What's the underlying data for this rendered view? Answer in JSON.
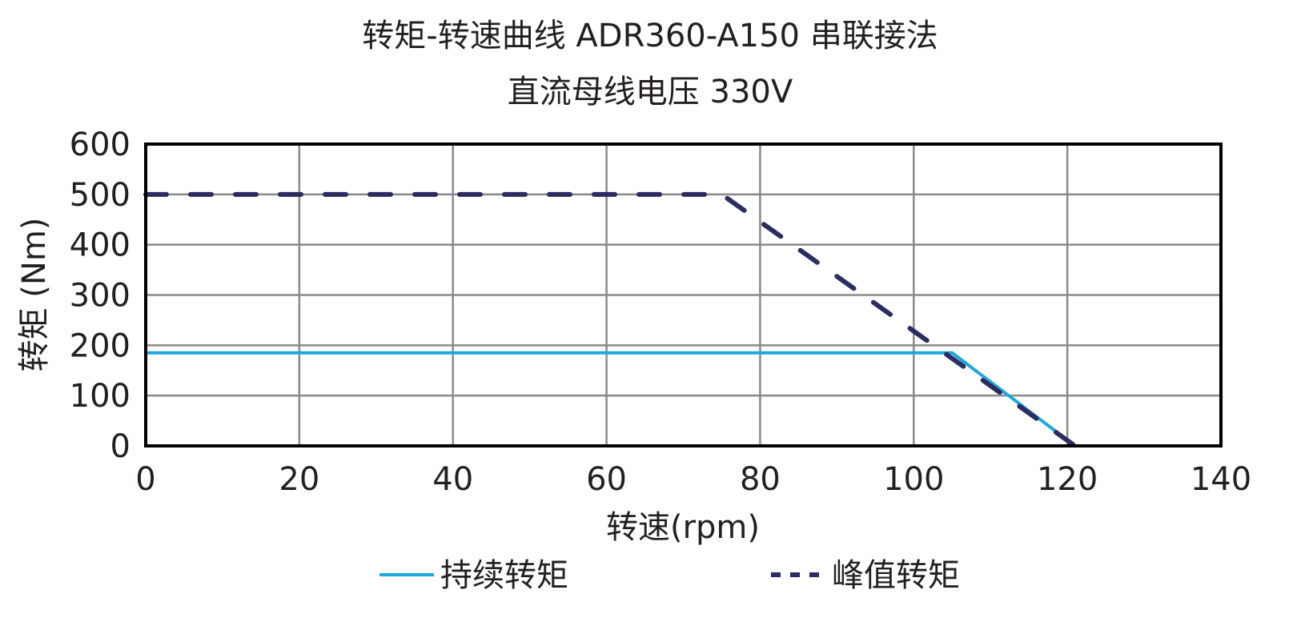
{
  "chart_data": {
    "type": "line",
    "title": "转矩-转速曲线 ADR360-A150 串联接法",
    "subtitle": "直流母线电压 330V",
    "xlabel": "转速(rpm)",
    "ylabel": "转矩 (Nm)",
    "xlim": [
      0,
      140
    ],
    "ylim": [
      0,
      600
    ],
    "xticks": [
      0,
      20,
      40,
      60,
      80,
      100,
      120,
      140
    ],
    "yticks": [
      0,
      100,
      200,
      300,
      400,
      500,
      600
    ],
    "grid": true,
    "legend_position": "bottom",
    "series": [
      {
        "name": "持续转矩",
        "style": "solid",
        "color": "#1ea7dc",
        "points": [
          [
            0,
            185
          ],
          [
            105,
            185
          ],
          [
            121,
            0
          ]
        ]
      },
      {
        "name": "峰值转矩",
        "style": "dashed",
        "color": "#2b2d62",
        "points": [
          [
            0,
            500
          ],
          [
            75,
            500
          ],
          [
            121,
            0
          ]
        ]
      }
    ]
  }
}
